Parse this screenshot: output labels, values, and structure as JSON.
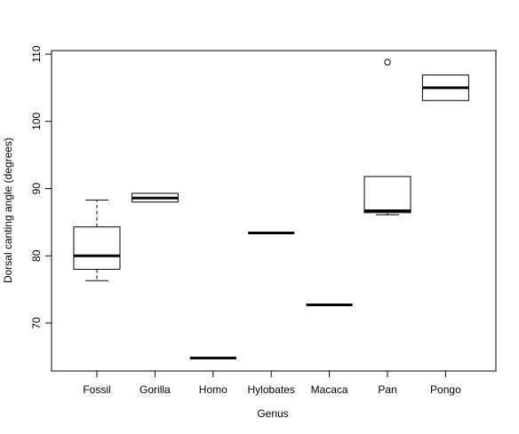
{
  "chart_data": {
    "type": "boxplot",
    "title": "",
    "xlabel": "Genus",
    "ylabel": "Dorsal canting angle (degrees)",
    "ylim": [
      63,
      111
    ],
    "yticks": [
      70,
      80,
      90,
      100,
      110
    ],
    "grid": false,
    "categories": [
      "Fossil",
      "Gorilla",
      "Homo",
      "Hylobates",
      "Macaca",
      "Pan",
      "Pongo"
    ],
    "boxes": [
      {
        "category": "Fossil",
        "whisker_low": 76.3,
        "q1": 78.0,
        "median": 80.0,
        "q3": 84.3,
        "whisker_high": 88.3,
        "outliers": []
      },
      {
        "category": "Gorilla",
        "whisker_low": 88.0,
        "q1": 88.0,
        "median": 88.6,
        "q3": 89.3,
        "whisker_high": 89.3,
        "outliers": []
      },
      {
        "category": "Homo",
        "whisker_low": 64.8,
        "q1": 64.8,
        "median": 64.8,
        "q3": 64.8,
        "whisker_high": 64.8,
        "outliers": []
      },
      {
        "category": "Hylobates",
        "whisker_low": 83.4,
        "q1": 83.4,
        "median": 83.4,
        "q3": 83.4,
        "whisker_high": 83.4,
        "outliers": []
      },
      {
        "category": "Macaca",
        "whisker_low": 72.7,
        "q1": 72.7,
        "median": 72.7,
        "q3": 72.7,
        "whisker_high": 72.7,
        "outliers": []
      },
      {
        "category": "Pan",
        "whisker_low": 86.1,
        "q1": 86.4,
        "median": 86.7,
        "q3": 91.8,
        "whisker_high": 91.8,
        "outliers": [
          108.8
        ]
      },
      {
        "category": "Pongo",
        "whisker_low": 103.1,
        "q1": 103.1,
        "median": 105.0,
        "q3": 106.9,
        "whisker_high": 106.9,
        "outliers": []
      }
    ]
  }
}
